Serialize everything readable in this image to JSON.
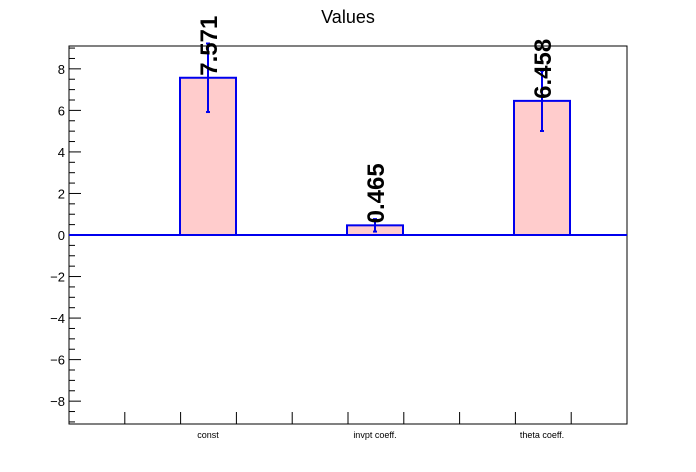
{
  "chart_data": {
    "type": "bar",
    "title": "Values",
    "categories": [
      "const",
      "invpt coeff.",
      "theta coeff."
    ],
    "values": [
      7.571,
      0.465,
      6.458
    ],
    "data_labels": [
      "7.571",
      "0.465",
      "6.458"
    ],
    "errors": [
      1.65,
      0.3,
      1.45
    ],
    "xlabel": "",
    "ylabel": "",
    "ylim": [
      -9.1,
      9.1
    ],
    "yticks": [
      -8,
      -6,
      -4,
      -2,
      0,
      2,
      4,
      6,
      8
    ],
    "ytick_labels": [
      "−8",
      "−6",
      "−4",
      "−2",
      "0",
      "2",
      "4",
      "6",
      "8"
    ],
    "grid": false,
    "legend": "none",
    "colors": {
      "bar_fill": "#ffcccc",
      "bar_stroke": "#0000ee",
      "baseline": "#0000ee",
      "axis": "#000000"
    }
  }
}
